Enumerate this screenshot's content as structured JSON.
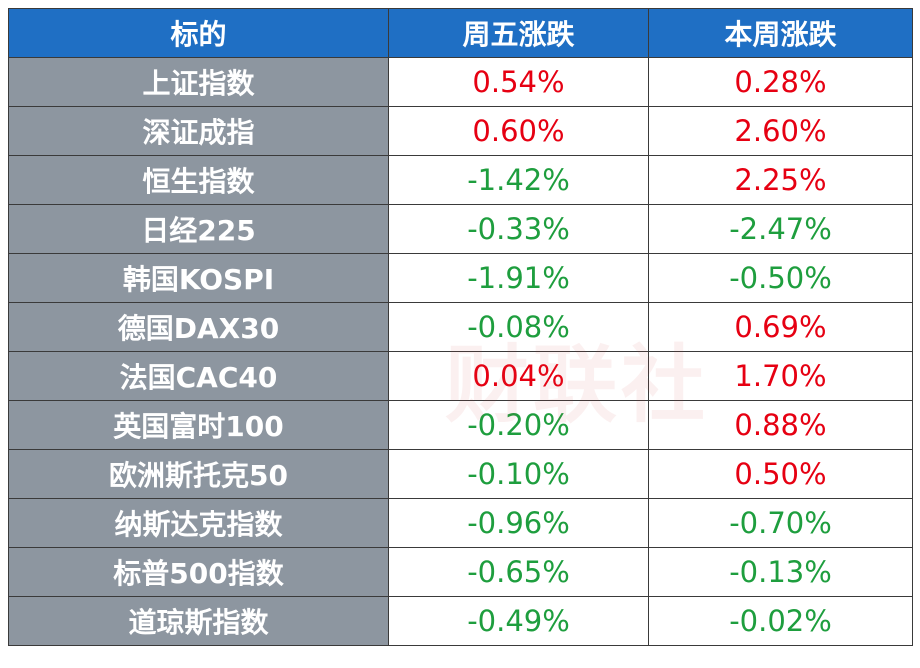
{
  "table": {
    "header": [
      "标的",
      "周五涨跌",
      "本周涨跌"
    ],
    "rows": [
      [
        "上证指数",
        "0.54%",
        "0.28%"
      ],
      [
        "深证成指",
        "0.60%",
        "2.60%"
      ],
      [
        "恒生指数",
        "-1.42%",
        "2.25%"
      ],
      [
        "日经225",
        "-0.33%",
        "-2.47%"
      ],
      [
        "韩国KOSPI",
        "-1.91%",
        "-0.50%"
      ],
      [
        "德国DAX30",
        "-0.08%",
        "0.69%"
      ],
      [
        "法国CAC40",
        "0.04%",
        "1.70%"
      ],
      [
        "英国富时100",
        "-0.20%",
        "0.88%"
      ],
      [
        "欧洲斯托克50",
        "-0.10%",
        "0.50%"
      ],
      [
        "纳斯达克指数",
        "-0.96%",
        "-0.70%"
      ],
      [
        "标普500指数",
        "-0.65%",
        "-0.13%"
      ],
      [
        "道琼斯指数",
        "-0.49%",
        "-0.02%"
      ]
    ]
  },
  "watermark": "财联社"
}
